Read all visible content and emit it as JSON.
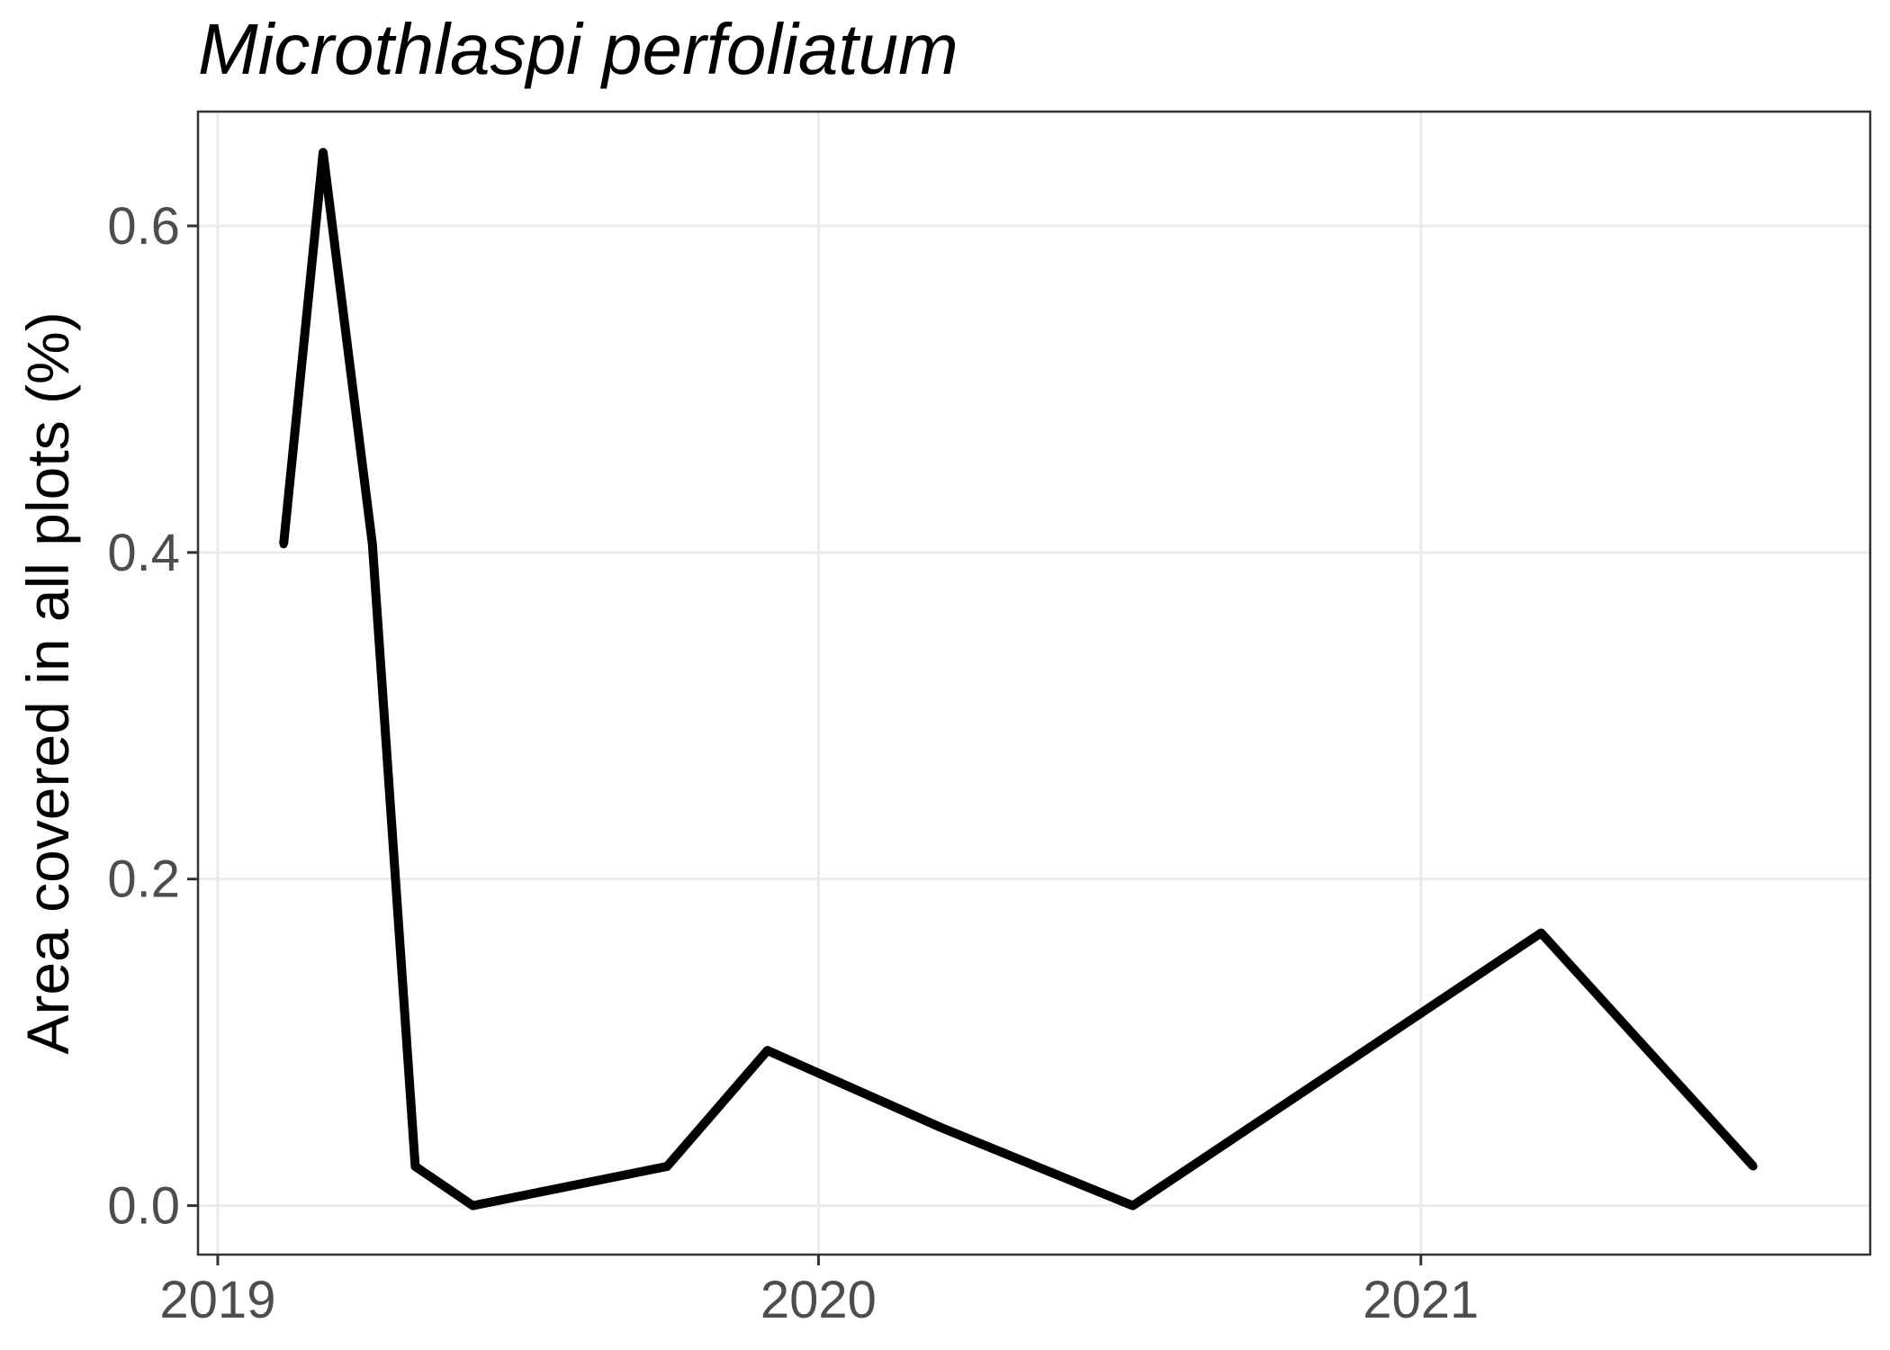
{
  "chart_data": {
    "type": "line",
    "title": "Microthlaspi perfoliatum",
    "xlabel": "",
    "ylabel": "Area covered in all plots (%)",
    "x_ticks": [
      "2019",
      "2020",
      "2021"
    ],
    "y_ticks": [
      "0.0",
      "0.2",
      "0.4",
      "0.6"
    ],
    "xlim": [
      "2018-12-20",
      "2021-10-01"
    ],
    "ylim": [
      -0.03,
      0.67
    ],
    "grid": true,
    "series": [
      {
        "color": "#000000",
        "points": [
          {
            "x": "2019-02-10",
            "y": 0.405
          },
          {
            "x": "2019-03-06",
            "y": 0.645
          },
          {
            "x": "2019-04-05",
            "y": 0.405
          },
          {
            "x": "2019-05-01",
            "y": 0.024
          },
          {
            "x": "2019-06-05",
            "y": 0.0
          },
          {
            "x": "2019-10-01",
            "y": 0.024
          },
          {
            "x": "2019-12-01",
            "y": 0.095
          },
          {
            "x": "2020-03-15",
            "y": 0.048
          },
          {
            "x": "2020-07-10",
            "y": 0.0
          },
          {
            "x": "2021-03-15",
            "y": 0.167
          },
          {
            "x": "2021-07-22",
            "y": 0.024
          }
        ]
      }
    ]
  }
}
